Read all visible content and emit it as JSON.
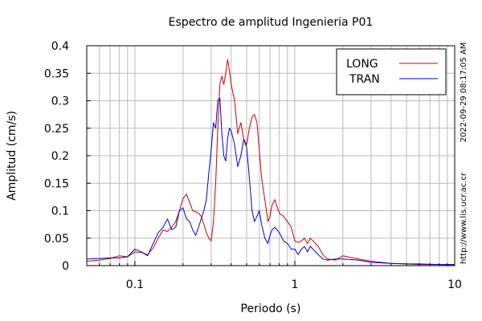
{
  "chart_data": {
    "type": "line",
    "title": "Espectro de amplitud Ingenieria P01",
    "xlabel": "Periodo (s)",
    "ylabel": "Amplitud (cm/s)",
    "x_scale": "log",
    "xlim": [
      0.05,
      10
    ],
    "ylim": [
      0,
      0.4
    ],
    "x_ticks": [
      {
        "value": 0.1,
        "label": "0.1"
      },
      {
        "value": 1,
        "label": "1"
      },
      {
        "value": 10,
        "label": "10"
      }
    ],
    "y_ticks": [
      {
        "value": 0,
        "label": "0"
      },
      {
        "value": 0.05,
        "label": "0.05"
      },
      {
        "value": 0.1,
        "label": "0.1"
      },
      {
        "value": 0.15,
        "label": "0.15"
      },
      {
        "value": 0.2,
        "label": "0.2"
      },
      {
        "value": 0.25,
        "label": "0.25"
      },
      {
        "value": 0.3,
        "label": "0.3"
      },
      {
        "value": 0.35,
        "label": "0.35"
      },
      {
        "value": 0.4,
        "label": "0.4"
      }
    ],
    "grid": true,
    "legend_position": "top-right",
    "series": [
      {
        "name": "LONG",
        "color": "#cc0000",
        "points": [
          [
            0.05,
            0.008
          ],
          [
            0.06,
            0.01
          ],
          [
            0.07,
            0.013
          ],
          [
            0.08,
            0.018
          ],
          [
            0.09,
            0.016
          ],
          [
            0.1,
            0.025
          ],
          [
            0.11,
            0.024
          ],
          [
            0.12,
            0.02
          ],
          [
            0.13,
            0.032
          ],
          [
            0.14,
            0.05
          ],
          [
            0.15,
            0.065
          ],
          [
            0.16,
            0.062
          ],
          [
            0.17,
            0.07
          ],
          [
            0.18,
            0.08
          ],
          [
            0.19,
            0.1
          ],
          [
            0.2,
            0.122
          ],
          [
            0.21,
            0.13
          ],
          [
            0.22,
            0.115
          ],
          [
            0.23,
            0.1
          ],
          [
            0.24,
            0.098
          ],
          [
            0.25,
            0.095
          ],
          [
            0.26,
            0.09
          ],
          [
            0.27,
            0.075
          ],
          [
            0.28,
            0.06
          ],
          [
            0.29,
            0.05
          ],
          [
            0.3,
            0.045
          ],
          [
            0.31,
            0.08
          ],
          [
            0.32,
            0.15
          ],
          [
            0.33,
            0.25
          ],
          [
            0.34,
            0.33
          ],
          [
            0.35,
            0.345
          ],
          [
            0.36,
            0.33
          ],
          [
            0.37,
            0.35
          ],
          [
            0.38,
            0.375
          ],
          [
            0.39,
            0.355
          ],
          [
            0.4,
            0.33
          ],
          [
            0.42,
            0.3
          ],
          [
            0.44,
            0.24
          ],
          [
            0.46,
            0.26
          ],
          [
            0.48,
            0.23
          ],
          [
            0.5,
            0.22
          ],
          [
            0.52,
            0.25
          ],
          [
            0.54,
            0.27
          ],
          [
            0.56,
            0.275
          ],
          [
            0.58,
            0.26
          ],
          [
            0.6,
            0.21
          ],
          [
            0.62,
            0.16
          ],
          [
            0.65,
            0.12
          ],
          [
            0.68,
            0.08
          ],
          [
            0.7,
            0.09
          ],
          [
            0.72,
            0.11
          ],
          [
            0.75,
            0.12
          ],
          [
            0.8,
            0.095
          ],
          [
            0.85,
            0.09
          ],
          [
            0.9,
            0.08
          ],
          [
            0.95,
            0.07
          ],
          [
            1.0,
            0.045
          ],
          [
            1.05,
            0.042
          ],
          [
            1.1,
            0.045
          ],
          [
            1.15,
            0.05
          ],
          [
            1.2,
            0.04
          ],
          [
            1.25,
            0.05
          ],
          [
            1.3,
            0.045
          ],
          [
            1.4,
            0.035
          ],
          [
            1.5,
            0.02
          ],
          [
            1.6,
            0.012
          ],
          [
            1.8,
            0.01
          ],
          [
            2.0,
            0.018
          ],
          [
            2.5,
            0.012
          ],
          [
            3.0,
            0.008
          ],
          [
            4.0,
            0.004
          ],
          [
            5.0,
            0.003
          ],
          [
            6.0,
            0.002
          ],
          [
            8.0,
            0.002
          ],
          [
            10.0,
            0.001
          ]
        ]
      },
      {
        "name": "TRAN",
        "color": "#0000cc",
        "points": [
          [
            0.05,
            0.012
          ],
          [
            0.06,
            0.013
          ],
          [
            0.07,
            0.014
          ],
          [
            0.08,
            0.014
          ],
          [
            0.09,
            0.016
          ],
          [
            0.1,
            0.03
          ],
          [
            0.11,
            0.025
          ],
          [
            0.12,
            0.018
          ],
          [
            0.13,
            0.04
          ],
          [
            0.14,
            0.06
          ],
          [
            0.15,
            0.07
          ],
          [
            0.16,
            0.085
          ],
          [
            0.17,
            0.065
          ],
          [
            0.18,
            0.07
          ],
          [
            0.19,
            0.1
          ],
          [
            0.2,
            0.105
          ],
          [
            0.21,
            0.085
          ],
          [
            0.22,
            0.08
          ],
          [
            0.23,
            0.065
          ],
          [
            0.24,
            0.055
          ],
          [
            0.25,
            0.07
          ],
          [
            0.26,
            0.085
          ],
          [
            0.27,
            0.1
          ],
          [
            0.28,
            0.12
          ],
          [
            0.29,
            0.17
          ],
          [
            0.3,
            0.21
          ],
          [
            0.31,
            0.26
          ],
          [
            0.32,
            0.25
          ],
          [
            0.33,
            0.3
          ],
          [
            0.34,
            0.305
          ],
          [
            0.35,
            0.24
          ],
          [
            0.36,
            0.2
          ],
          [
            0.37,
            0.19
          ],
          [
            0.38,
            0.23
          ],
          [
            0.39,
            0.25
          ],
          [
            0.4,
            0.245
          ],
          [
            0.42,
            0.22
          ],
          [
            0.44,
            0.18
          ],
          [
            0.46,
            0.2
          ],
          [
            0.48,
            0.23
          ],
          [
            0.5,
            0.215
          ],
          [
            0.52,
            0.16
          ],
          [
            0.54,
            0.1
          ],
          [
            0.56,
            0.08
          ],
          [
            0.58,
            0.09
          ],
          [
            0.6,
            0.1
          ],
          [
            0.62,
            0.075
          ],
          [
            0.65,
            0.05
          ],
          [
            0.68,
            0.04
          ],
          [
            0.7,
            0.055
          ],
          [
            0.72,
            0.065
          ],
          [
            0.75,
            0.07
          ],
          [
            0.8,
            0.06
          ],
          [
            0.85,
            0.045
          ],
          [
            0.9,
            0.04
          ],
          [
            0.95,
            0.03
          ],
          [
            1.0,
            0.03
          ],
          [
            1.05,
            0.02
          ],
          [
            1.1,
            0.03
          ],
          [
            1.15,
            0.035
          ],
          [
            1.2,
            0.025
          ],
          [
            1.25,
            0.035
          ],
          [
            1.3,
            0.03
          ],
          [
            1.4,
            0.02
          ],
          [
            1.5,
            0.012
          ],
          [
            1.6,
            0.01
          ],
          [
            1.8,
            0.012
          ],
          [
            2.0,
            0.012
          ],
          [
            2.5,
            0.01
          ],
          [
            3.0,
            0.006
          ],
          [
            4.0,
            0.004
          ],
          [
            5.0,
            0.003
          ],
          [
            6.0,
            0.003
          ],
          [
            8.0,
            0.002
          ],
          [
            10.0,
            0.002
          ]
        ]
      }
    ]
  },
  "side": {
    "timestamp": "2022-09-29 08:17:05 AM",
    "url": "http://www.lis.ucr.ac.cr"
  }
}
